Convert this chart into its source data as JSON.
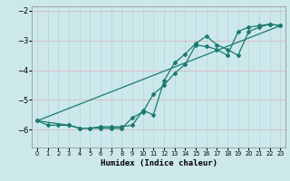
{
  "xlabel": "Humidex (Indice chaleur)",
  "bg_color": "#cce8eb",
  "grid_color": "#b8d8dc",
  "line_color": "#1a7a6e",
  "ylim": [
    -6.6,
    -1.85
  ],
  "xlim": [
    -0.5,
    23.5
  ],
  "yticks": [
    -6,
    -5,
    -4,
    -3,
    -2
  ],
  "xticks": [
    0,
    1,
    2,
    3,
    4,
    5,
    6,
    7,
    8,
    9,
    10,
    11,
    12,
    13,
    14,
    15,
    16,
    17,
    18,
    19,
    20,
    21,
    22,
    23
  ],
  "line1_x": [
    0,
    1,
    2,
    3,
    4,
    5,
    6,
    7,
    8,
    9,
    10,
    11,
    12,
    13,
    14,
    15,
    16,
    17,
    18,
    19,
    20,
    21,
    22,
    23
  ],
  "line1_y": [
    -5.7,
    -5.85,
    -5.85,
    -5.85,
    -5.95,
    -5.95,
    -5.95,
    -5.95,
    -5.95,
    -5.6,
    -5.4,
    -4.8,
    -4.5,
    -4.1,
    -3.8,
    -3.15,
    -3.2,
    -3.3,
    -3.5,
    -2.7,
    -2.55,
    -2.5,
    -2.45,
    -2.5
  ],
  "line2_x": [
    0,
    3,
    4,
    5,
    6,
    7,
    8,
    9,
    10,
    11,
    12,
    13,
    14,
    15,
    16,
    17,
    18,
    19,
    20,
    21,
    22,
    23
  ],
  "line2_y": [
    -5.7,
    -5.85,
    -5.95,
    -5.95,
    -5.9,
    -5.9,
    -5.9,
    -5.85,
    -5.35,
    -5.5,
    -4.35,
    -3.75,
    -3.45,
    -3.1,
    -2.85,
    -3.15,
    -3.3,
    -3.5,
    -2.7,
    -2.55,
    -2.45,
    -2.5
  ],
  "line3_x": [
    0,
    23
  ],
  "line3_y": [
    -5.7,
    -2.5
  ]
}
